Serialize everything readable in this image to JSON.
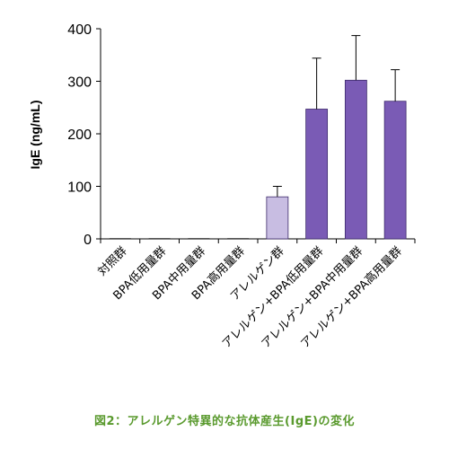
{
  "chart_data": {
    "type": "bar",
    "ylabel": "IgE (ng/mL)",
    "ylim": [
      0,
      400
    ],
    "yticks": [
      "0",
      "100",
      "200",
      "300",
      "400"
    ],
    "categories": [
      "対照群",
      "BPA低用量群",
      "BPA中用量群",
      "BPA高用量群",
      "アレルゲン群",
      "アレルゲン+BPA低用量群",
      "アレルゲン+BPA中用量群",
      "アレルゲン+BPA高用量群"
    ],
    "values": [
      0,
      0,
      1,
      0,
      80,
      247,
      302,
      262
    ],
    "errors": [
      0,
      0,
      0,
      0,
      20,
      97,
      85,
      60
    ],
    "colors": {
      "allergen": "#c8bde2",
      "combined": "#7a5bb5",
      "axis": "#000000"
    },
    "grid": false
  },
  "caption": "図2：アレルゲン特異的な抗体産生(IgE)の変化"
}
